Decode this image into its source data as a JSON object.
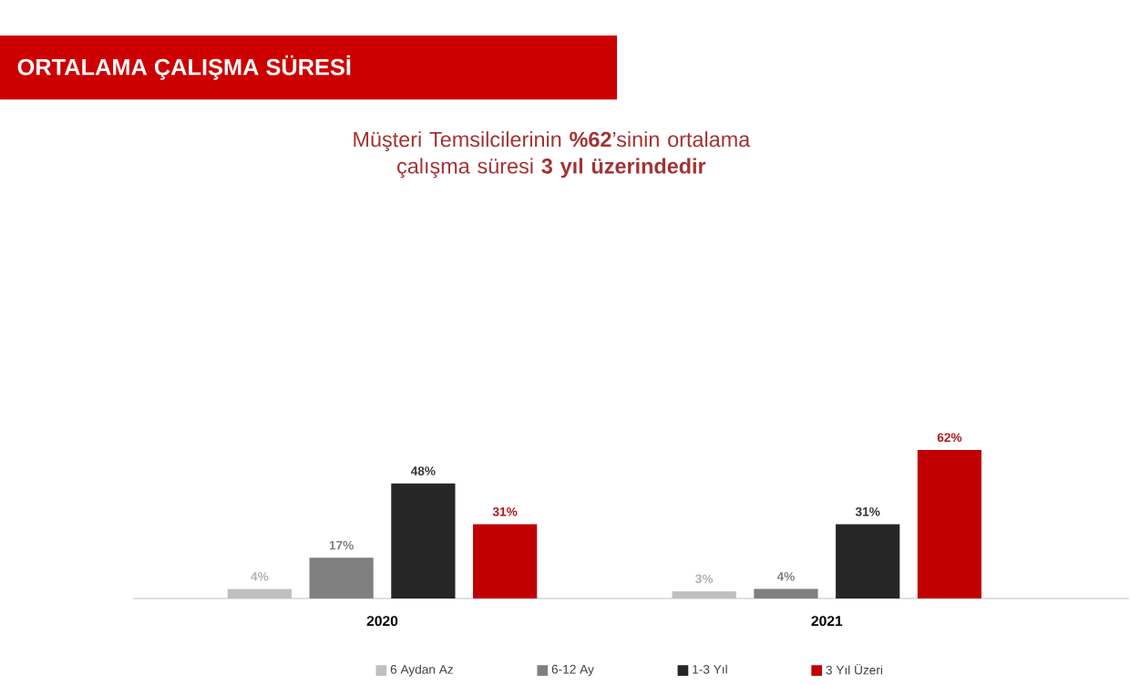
{
  "chart_data": {
    "type": "bar",
    "title": "ORTALAMA ÇALIŞMA SÜRESİ",
    "subtitle": "Müşteri Temsilcilerinin **%62**’sinin ortalama çalışma süresi **3 yıl üzerindedir**",
    "categories": [
      "2020",
      "2021"
    ],
    "legend": "bottom",
    "series": [
      {
        "name": "6 Aydan Az",
        "color": "#bfbfbf",
        "values": [
          4,
          3
        ],
        "value_labels": [
          "4%",
          "3%"
        ]
      },
      {
        "name": "6-12 Ay",
        "color": "#808080",
        "values": [
          17,
          4
        ],
        "value_labels": [
          "17%",
          "4%"
        ]
      },
      {
        "name": "1-3 Yıl",
        "color": "#262626",
        "values": [
          48,
          31
        ],
        "value_labels": [
          "48%",
          "31%"
        ]
      },
      {
        "name": "3 Yıl Üzeri",
        "color": "#c00000",
        "values": [
          31,
          62
        ],
        "value_labels": [
          "31%",
          "62%"
        ]
      }
    ]
  }
}
